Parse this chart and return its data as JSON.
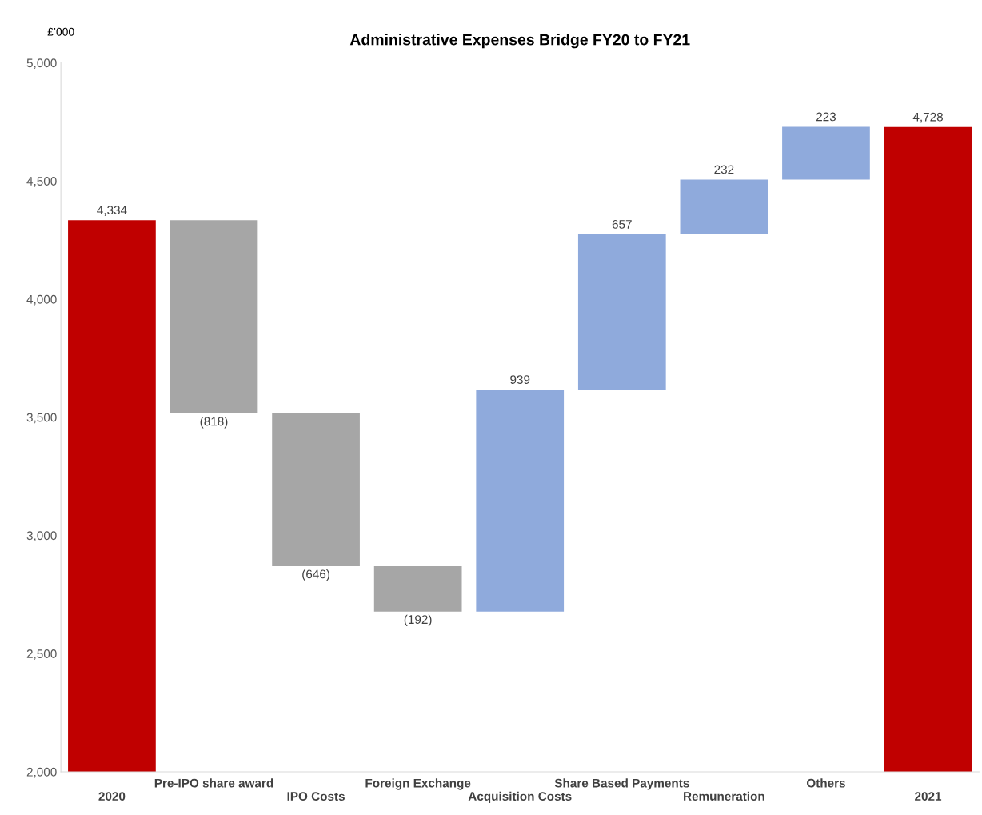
{
  "chart_data": {
    "type": "bar",
    "title": "Administrative Expenses Bridge FY20 to FY21",
    "ylabel": "£’000",
    "categories": [
      "2020",
      "Pre-IPO share award",
      "IPO Costs",
      "Foreign Exchange",
      "Acquisition Costs",
      "Share Based Payments",
      "Remuneration",
      "Others",
      "2021"
    ],
    "values": [
      4334,
      -818,
      -646,
      -192,
      939,
      657,
      232,
      223,
      4728
    ],
    "base": [
      0,
      4334,
      3516,
      2870,
      2678,
      3617,
      4274,
      4506,
      0
    ],
    "colors": [
      "#c00000",
      "#a6a6a6",
      "#a6a6a6",
      "#a6a6a6",
      "#8faadc",
      "#8faadc",
      "#8faadc",
      "#8faadc",
      "#c00000"
    ],
    "value_labels": [
      "4,334",
      "(818)",
      "(646)",
      "(192)",
      "939",
      "657",
      "232",
      "223",
      "4,728"
    ],
    "ylim": [
      2000,
      5000
    ],
    "yticks": [
      {
        "value": 2000,
        "label": "2,000"
      },
      {
        "value": 2500,
        "label": "2,500"
      },
      {
        "value": 3000,
        "label": "3,000"
      },
      {
        "value": 3500,
        "label": "3,500"
      },
      {
        "value": 4000,
        "label": "4,000"
      },
      {
        "value": 4500,
        "label": "4,500"
      },
      {
        "value": 5000,
        "label": "5,000"
      }
    ],
    "grid": false,
    "legend": false
  }
}
